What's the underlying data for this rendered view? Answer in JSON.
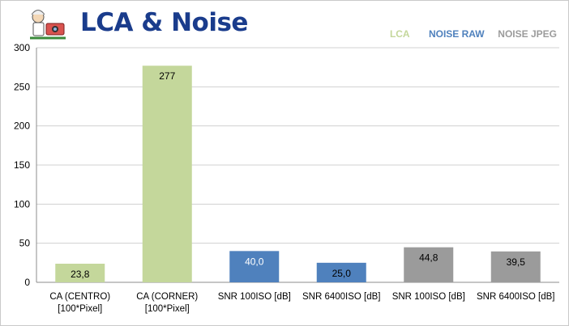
{
  "header": {
    "title": "LCA & Noise"
  },
  "legend": [
    {
      "label": "LCA",
      "color": "#c4d79b"
    },
    {
      "label": "NOISE RAW",
      "color": "#4f81bd"
    },
    {
      "label": "NOISE JPEG",
      "color": "#9b9b9b"
    }
  ],
  "chart_data": {
    "type": "bar",
    "categories": [
      [
        "CA (CENTRO)",
        "[100*Pixel]"
      ],
      [
        "CA (CORNER)",
        "[100*Pixel]"
      ],
      [
        "SNR 100ISO [dB]"
      ],
      [
        "SNR 6400ISO [dB]"
      ],
      [
        "SNR 100ISO [dB]"
      ],
      [
        "SNR 6400ISO [dB]"
      ]
    ],
    "values": [
      23.8,
      277,
      40.0,
      25.0,
      44.8,
      39.5
    ],
    "value_labels": [
      "23,8",
      "277",
      "40,0",
      "25,0",
      "44,8",
      "39,5"
    ],
    "bar_colors": [
      "#c4d79b",
      "#c4d79b",
      "#4f81bd",
      "#4f81bd",
      "#9b9b9b",
      "#9b9b9b"
    ],
    "label_colors": [
      "#000000",
      "#000000",
      "#ffffff",
      "#000000",
      "#000000",
      "#000000"
    ],
    "ylim": [
      0,
      300
    ],
    "yticks": [
      0,
      50,
      100,
      150,
      200,
      250,
      300
    ],
    "grid": true,
    "legend_position": "top-right"
  }
}
